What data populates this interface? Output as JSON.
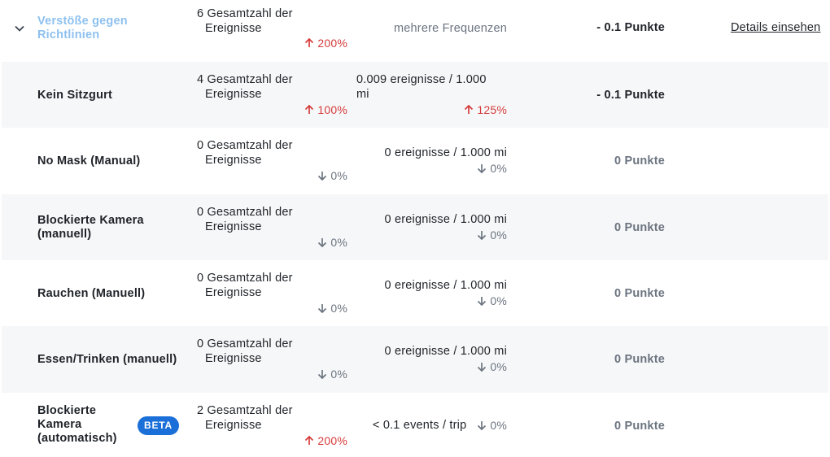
{
  "header_row": {
    "name": "Verstöße gegen Richtlinien",
    "total_line1": "6 Gesamtzahl der",
    "total_line2": "Ereignisse",
    "total_change": "200%",
    "frequency": "mehrere Frequenzen",
    "points": "- 0.1 Punkte",
    "details_link": "Details einsehen"
  },
  "rows": [
    {
      "name": "Kein Sitzgurt",
      "total_line1": "4 Gesamtzahl der",
      "total_line2": "Ereignisse",
      "total_change": "100%",
      "total_dir": "up",
      "frequency": "0.009 ereignisse / 1.000 mi",
      "freq_change": "125%",
      "freq_dir": "up",
      "points": "- 0.1 Punkte"
    },
    {
      "name": "No Mask (Manual)",
      "total_line1": "0 Gesamtzahl der",
      "total_line2": "Ereignisse",
      "total_change": "0%",
      "total_dir": "down",
      "frequency": "0 ereignisse / 1.000 mi",
      "freq_change": "0%",
      "freq_dir": "down",
      "points": "0 Punkte"
    },
    {
      "name": "Blockierte Kamera (manuell)",
      "total_line1": "0 Gesamtzahl der",
      "total_line2": "Ereignisse",
      "total_change": "0%",
      "total_dir": "down",
      "frequency": "0 ereignisse / 1.000 mi",
      "freq_change": "0%",
      "freq_dir": "down",
      "points": "0 Punkte"
    },
    {
      "name": "Rauchen (Manuell)",
      "total_line1": "0 Gesamtzahl der",
      "total_line2": "Ereignisse",
      "total_change": "0%",
      "total_dir": "down",
      "frequency": "0 ereignisse / 1.000 mi",
      "freq_change": "0%",
      "freq_dir": "down",
      "points": "0 Punkte"
    },
    {
      "name": "Essen/Trinken (manuell)",
      "total_line1": "0 Gesamtzahl der",
      "total_line2": "Ereignisse",
      "total_change": "0%",
      "total_dir": "down",
      "frequency": "0 ereignisse / 1.000 mi",
      "freq_change": "0%",
      "freq_dir": "down",
      "points": "0 Punkte"
    },
    {
      "name": "Blockierte Kamera (automatisch)",
      "badge": "BETA",
      "total_line1": "2 Gesamtzahl der",
      "total_line2": "Ereignisse",
      "total_change": "200%",
      "total_dir": "up",
      "frequency": "< 0.1 events / trip",
      "freq_change": "0%",
      "freq_dir": "down",
      "points": "0 Punkte"
    }
  ],
  "colors": {
    "link": "#8ec1ef",
    "up": "#d63b3b",
    "down": "#6b7480",
    "alt_row": "#f6f7f8",
    "badge": "#1b6fd8"
  }
}
